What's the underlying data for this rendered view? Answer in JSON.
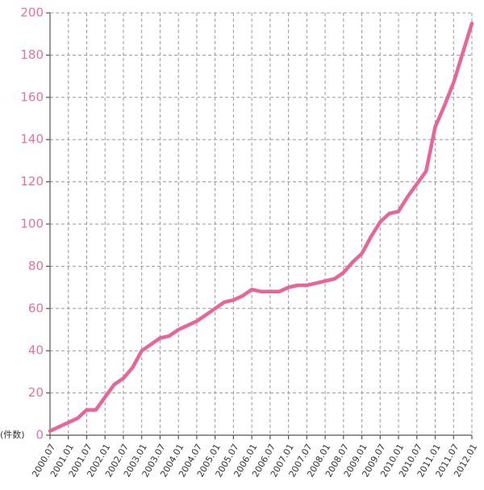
{
  "chart_data": {
    "type": "line",
    "y_label": "(件数)",
    "x": [
      "2000.07",
      "2000.10",
      "2001.01",
      "2001.04",
      "2001.07",
      "2001.10",
      "2002.01",
      "2002.04",
      "2002.07",
      "2002.10",
      "2003.01",
      "2003.04",
      "2003.07",
      "2003.10",
      "2004.01",
      "2004.04",
      "2004.07",
      "2004.10",
      "2005.01",
      "2005.04",
      "2005.07",
      "2005.10",
      "2006.01",
      "2006.04",
      "2006.07",
      "2006.10",
      "2007.01",
      "2007.04",
      "2007.07",
      "2007.10",
      "2008.01",
      "2008.04",
      "2008.07",
      "2008.10",
      "2009.01",
      "2009.04",
      "2009.07",
      "2009.10",
      "2010.01",
      "2010.04",
      "2010.07",
      "2010.10",
      "2011.01",
      "2011.04",
      "2011.07",
      "2011.10",
      "2012.01"
    ],
    "series": [
      {
        "color": "#e8659a",
        "values": [
          2,
          4,
          6,
          8,
          12,
          12,
          18,
          24,
          27,
          32,
          40,
          43,
          46,
          47,
          50,
          52,
          54,
          57,
          60,
          63,
          64,
          66,
          69,
          68,
          68,
          68,
          70,
          71,
          71,
          72,
          73,
          74,
          77,
          82,
          86,
          94,
          101,
          105,
          106,
          113,
          119,
          125,
          146,
          156,
          167,
          181,
          195
        ]
      }
    ],
    "xticks": [
      "2000.07",
      "2001.01",
      "2001.07",
      "2002.01",
      "2002.07",
      "2003.01",
      "2003.07",
      "2004.01",
      "2004.07",
      "2005.01",
      "2005.07",
      "2006.01",
      "2006.07",
      "2007.01",
      "2007.07",
      "2008.01",
      "2008.07",
      "2009.01",
      "2009.07",
      "2010.01",
      "2010.07",
      "2011.01",
      "2011.07",
      "2012.01"
    ],
    "ylim": [
      0,
      200
    ],
    "yticks": [
      0,
      20,
      40,
      60,
      80,
      100,
      120,
      140,
      160,
      180,
      200
    ],
    "grid": true
  }
}
